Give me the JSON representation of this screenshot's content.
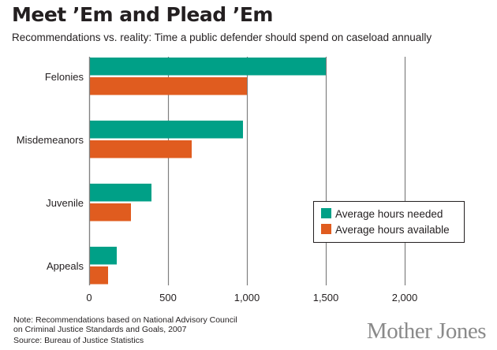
{
  "header": {
    "title": "Meet ’Em and Plead ’Em",
    "subtitle": "Recommendations vs. reality: Time a public defender should spend on caseload annually"
  },
  "footer": {
    "note_line1": "Note: Recommendations based on National Advisory Council",
    "note_line2": "on Criminal Justice Standards and Goals, 2007",
    "source": "Source: Bureau of Justice Statistics",
    "brand": "Mother Jones"
  },
  "colors": {
    "needed": "#00a087",
    "available": "#e05c1f",
    "grid": "#808080",
    "text": "#231f20"
  },
  "chart_data": {
    "type": "bar",
    "orientation": "horizontal",
    "title": "Meet ’Em and Plead ’Em",
    "subtitle": "Recommendations vs. reality: Time a public defender should spend on caseload annually",
    "xlabel": "",
    "ylabel": "",
    "categories": [
      "Felonies",
      "Misdemeanors",
      "Juvenile",
      "Appeals"
    ],
    "series": [
      {
        "name": "Average hours needed",
        "color": "#00a087",
        "values": [
          1500,
          975,
          395,
          175
        ]
      },
      {
        "name": "Average hours available",
        "color": "#e05c1f",
        "values": [
          1000,
          650,
          265,
          120
        ]
      }
    ],
    "xlim": [
      0,
      2000
    ],
    "xticks": [
      0,
      500,
      1000,
      1500,
      2000
    ],
    "xtick_labels": [
      "0",
      "500",
      "1,000",
      "1,500",
      "2,000"
    ],
    "grid": true,
    "legend": "right"
  }
}
